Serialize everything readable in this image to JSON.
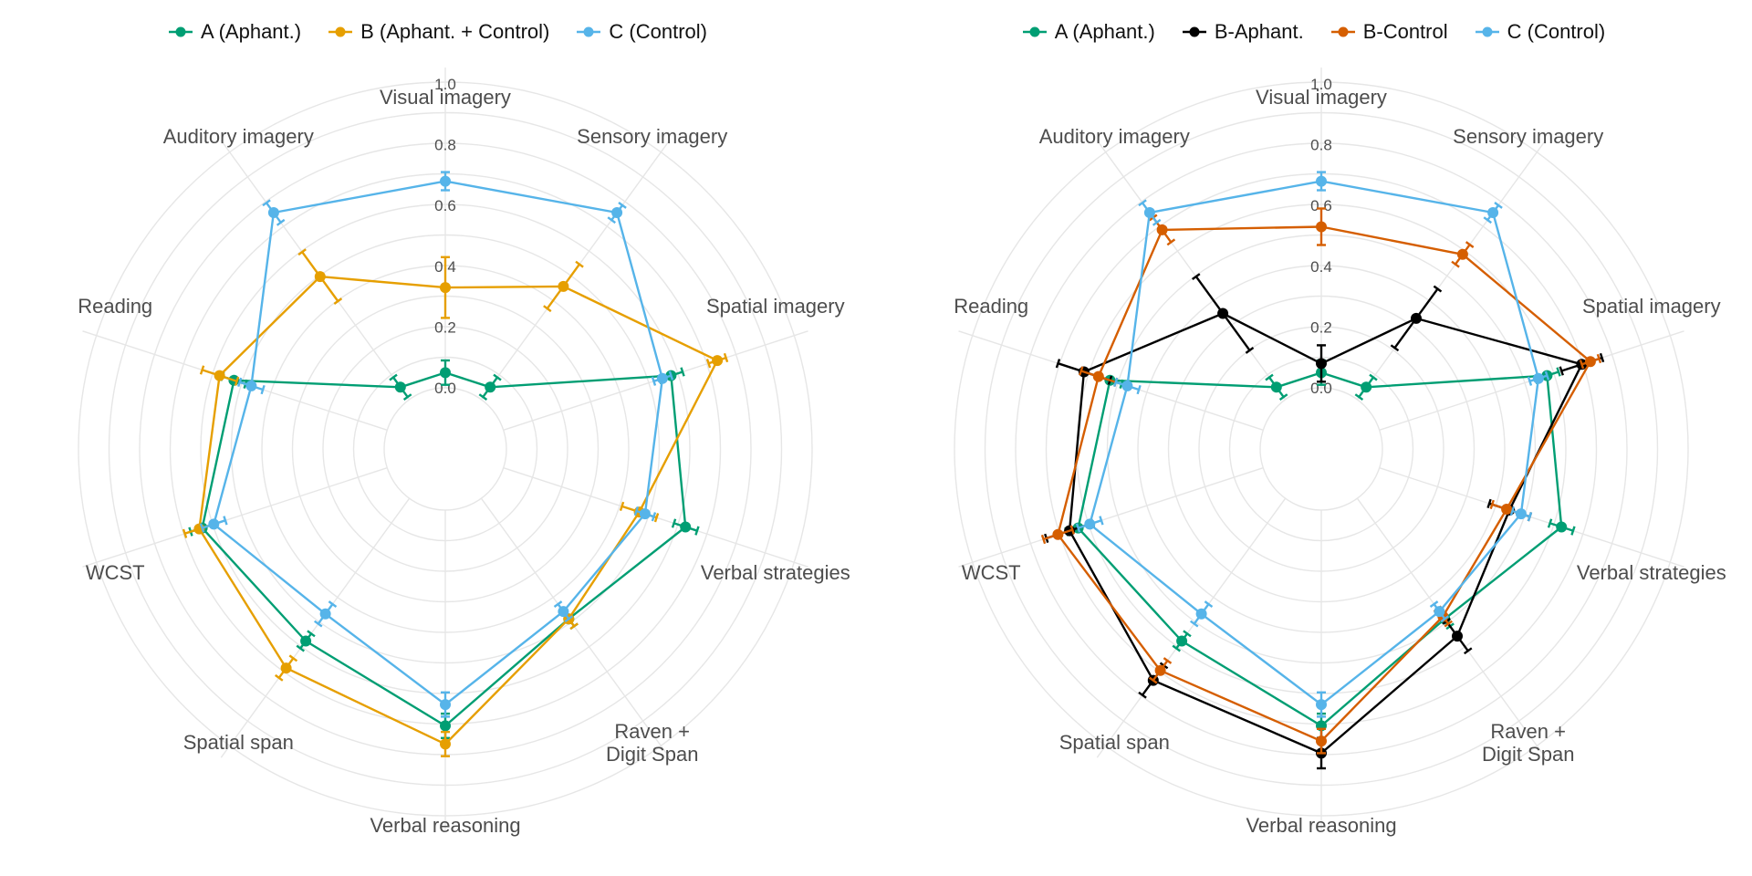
{
  "chart_data": [
    {
      "type": "radar",
      "axes": [
        "Visual imagery",
        "Sensory imagery",
        "Spatial imagery",
        "Verbal strategies",
        "Raven +\nDigit Span",
        "Verbal reasoning",
        "Spatial span",
        "WCST",
        "Reading",
        "Auditory imagery"
      ],
      "rlim": [
        0,
        1
      ],
      "r_ticks": [
        "0.0",
        "0.2",
        "0.4",
        "0.6",
        "0.8",
        "1.0"
      ],
      "grid": true,
      "legend_position": "top",
      "series": [
        {
          "name": "A (Aphant.)",
          "color": "#009E73",
          "values": [
            0.05,
            0.05,
            0.58,
            0.63,
            0.49,
            0.71,
            0.58,
            0.64,
            0.53,
            0.05
          ],
          "errors": [
            0.04,
            0.04,
            0.04,
            0.04,
            0.03,
            0.04,
            0.03,
            0.04,
            0.04,
            0.04
          ]
        },
        {
          "name": "B (Aphant. + Control)",
          "color": "#E69F00",
          "values": [
            0.33,
            0.46,
            0.74,
            0.47,
            0.49,
            0.77,
            0.69,
            0.65,
            0.58,
            0.5
          ],
          "errors": [
            0.1,
            0.09,
            0.03,
            0.06,
            0.03,
            0.04,
            0.04,
            0.05,
            0.06,
            0.1
          ]
        },
        {
          "name": "C (Control)",
          "color": "#56B4E9",
          "values": [
            0.68,
            0.76,
            0.55,
            0.49,
            0.46,
            0.64,
            0.47,
            0.6,
            0.47,
            0.76
          ],
          "errors": [
            0.03,
            0.03,
            0.03,
            0.03,
            0.03,
            0.04,
            0.04,
            0.04,
            0.04,
            0.04
          ]
        }
      ]
    },
    {
      "type": "radar",
      "axes": [
        "Visual imagery",
        "Sensory imagery",
        "Spatial imagery",
        "Verbal strategies",
        "Raven +\nDigit Span",
        "Verbal reasoning",
        "Spatial span",
        "WCST",
        "Reading",
        "Auditory imagery"
      ],
      "rlim": [
        0,
        1
      ],
      "r_ticks": [
        "0.0",
        "0.2",
        "0.4",
        "0.6",
        "0.8",
        "1.0"
      ],
      "grid": true,
      "legend_position": "top",
      "series": [
        {
          "name": "A (Aphant.)",
          "color": "#009E73",
          "values": [
            0.05,
            0.05,
            0.58,
            0.63,
            0.49,
            0.71,
            0.58,
            0.64,
            0.53,
            0.05
          ],
          "errors": [
            0.04,
            0.04,
            0.04,
            0.04,
            0.03,
            0.04,
            0.03,
            0.04,
            0.04,
            0.04
          ]
        },
        {
          "name": "B-Aphant.",
          "color": "#000000",
          "values": [
            0.08,
            0.33,
            0.7,
            0.45,
            0.56,
            0.8,
            0.74,
            0.67,
            0.62,
            0.35
          ],
          "errors": [
            0.06,
            0.12,
            0.07,
            0.07,
            0.06,
            0.05,
            0.06,
            0.08,
            0.09,
            0.15
          ]
        },
        {
          "name": "B-Control",
          "color": "#D55E00",
          "values": [
            0.53,
            0.59,
            0.73,
            0.44,
            0.48,
            0.76,
            0.7,
            0.71,
            0.57,
            0.69
          ],
          "errors": [
            0.06,
            0.04,
            0.03,
            0.05,
            0.03,
            0.04,
            0.04,
            0.05,
            0.06,
            0.05
          ]
        },
        {
          "name": "C (Control)",
          "color": "#56B4E9",
          "values": [
            0.68,
            0.76,
            0.55,
            0.49,
            0.46,
            0.64,
            0.47,
            0.6,
            0.47,
            0.76
          ],
          "errors": [
            0.03,
            0.03,
            0.03,
            0.03,
            0.03,
            0.04,
            0.04,
            0.04,
            0.04,
            0.04
          ]
        }
      ]
    }
  ]
}
